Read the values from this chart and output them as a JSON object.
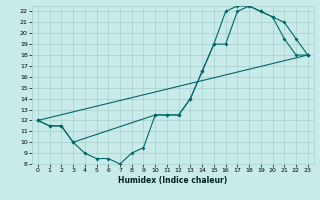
{
  "xlabel": "Humidex (Indice chaleur)",
  "bg_color": "#c8eae8",
  "grid_color": "#a8d0ce",
  "line_color": "#006868",
  "xlim": [
    -0.5,
    23.5
  ],
  "ylim": [
    8,
    22.5
  ],
  "xticks": [
    0,
    1,
    2,
    3,
    4,
    5,
    6,
    7,
    8,
    9,
    10,
    11,
    12,
    13,
    14,
    15,
    16,
    17,
    18,
    19,
    20,
    21,
    22,
    23
  ],
  "yticks": [
    8,
    9,
    10,
    11,
    12,
    13,
    14,
    15,
    16,
    17,
    18,
    19,
    20,
    21,
    22
  ],
  "line1_x": [
    0,
    1,
    2,
    3,
    4,
    5,
    6,
    7,
    8,
    9,
    10,
    11,
    12,
    13,
    14,
    15,
    16,
    17,
    18,
    19,
    20,
    21,
    22,
    23
  ],
  "line1_y": [
    12,
    11.5,
    11.5,
    10,
    9,
    8.5,
    8.5,
    8,
    9,
    9.5,
    12.5,
    12.5,
    12.5,
    14,
    16.5,
    19,
    19,
    22,
    22.5,
    22,
    21.5,
    19.5,
    18,
    18
  ],
  "line2_x": [
    0,
    1,
    2,
    3,
    10,
    11,
    12,
    13,
    14,
    15,
    16,
    17,
    18,
    19,
    20,
    21,
    22,
    23
  ],
  "line2_y": [
    12,
    11.5,
    11.5,
    10,
    12.5,
    12.5,
    12.5,
    14,
    16.5,
    19,
    22,
    22.5,
    22.5,
    22,
    21.5,
    21,
    19.5,
    18
  ],
  "line3_x": [
    0,
    23
  ],
  "line3_y": [
    12,
    18
  ]
}
